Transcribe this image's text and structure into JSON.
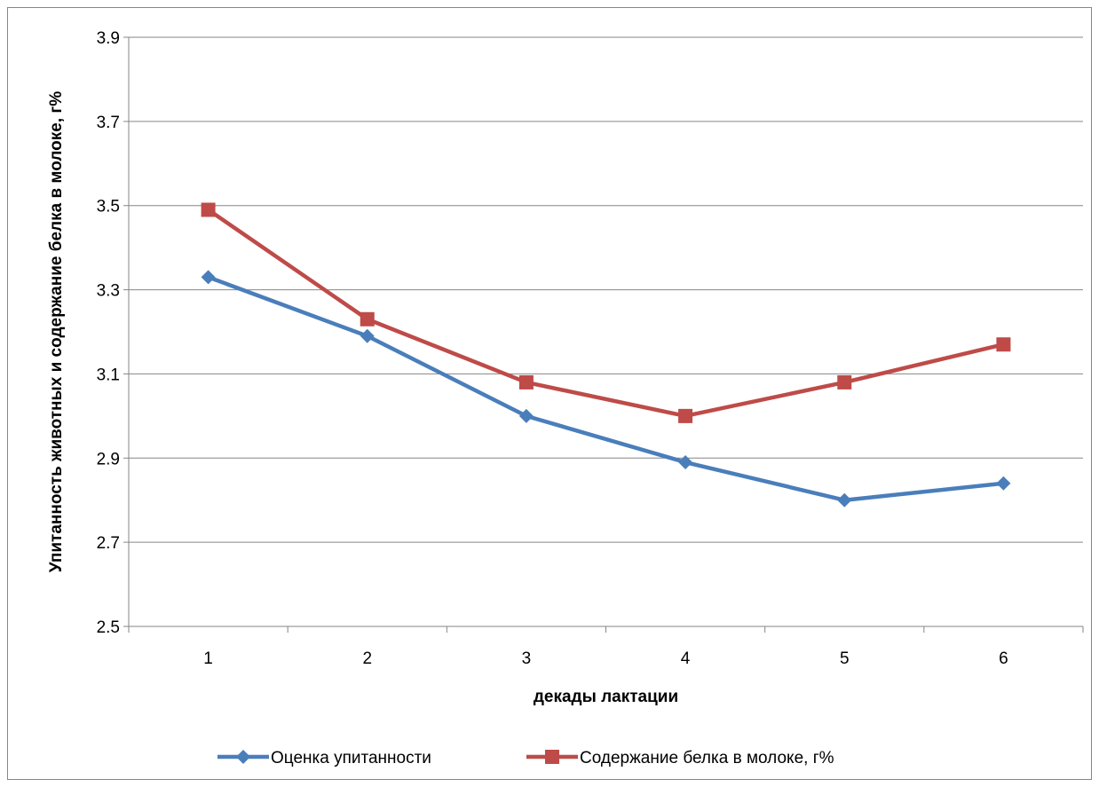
{
  "chart_data": {
    "type": "line",
    "title": "",
    "xlabel": "декады лактации",
    "ylabel": "Упитанность животных и содержание белка в молоке, г%",
    "categories": [
      "1",
      "2",
      "3",
      "4",
      "5",
      "6"
    ],
    "ylim": [
      2.5,
      3.9
    ],
    "yticks": [
      "2.5",
      "2.7",
      "2.9",
      "3.1",
      "3.3",
      "3.5",
      "3.7",
      "3.9"
    ],
    "grid": true,
    "legend": "bottom",
    "series": [
      {
        "name": "Оценка упитанности",
        "values": [
          3.33,
          3.19,
          3.0,
          2.89,
          2.8,
          2.84
        ],
        "color": "#4a7ebb",
        "marker": "diamond"
      },
      {
        "name": "Содержание белка в молоке, г%",
        "values": [
          3.49,
          3.23,
          3.08,
          3.0,
          3.08,
          3.17
        ],
        "color": "#be4b48",
        "marker": "square"
      }
    ]
  }
}
